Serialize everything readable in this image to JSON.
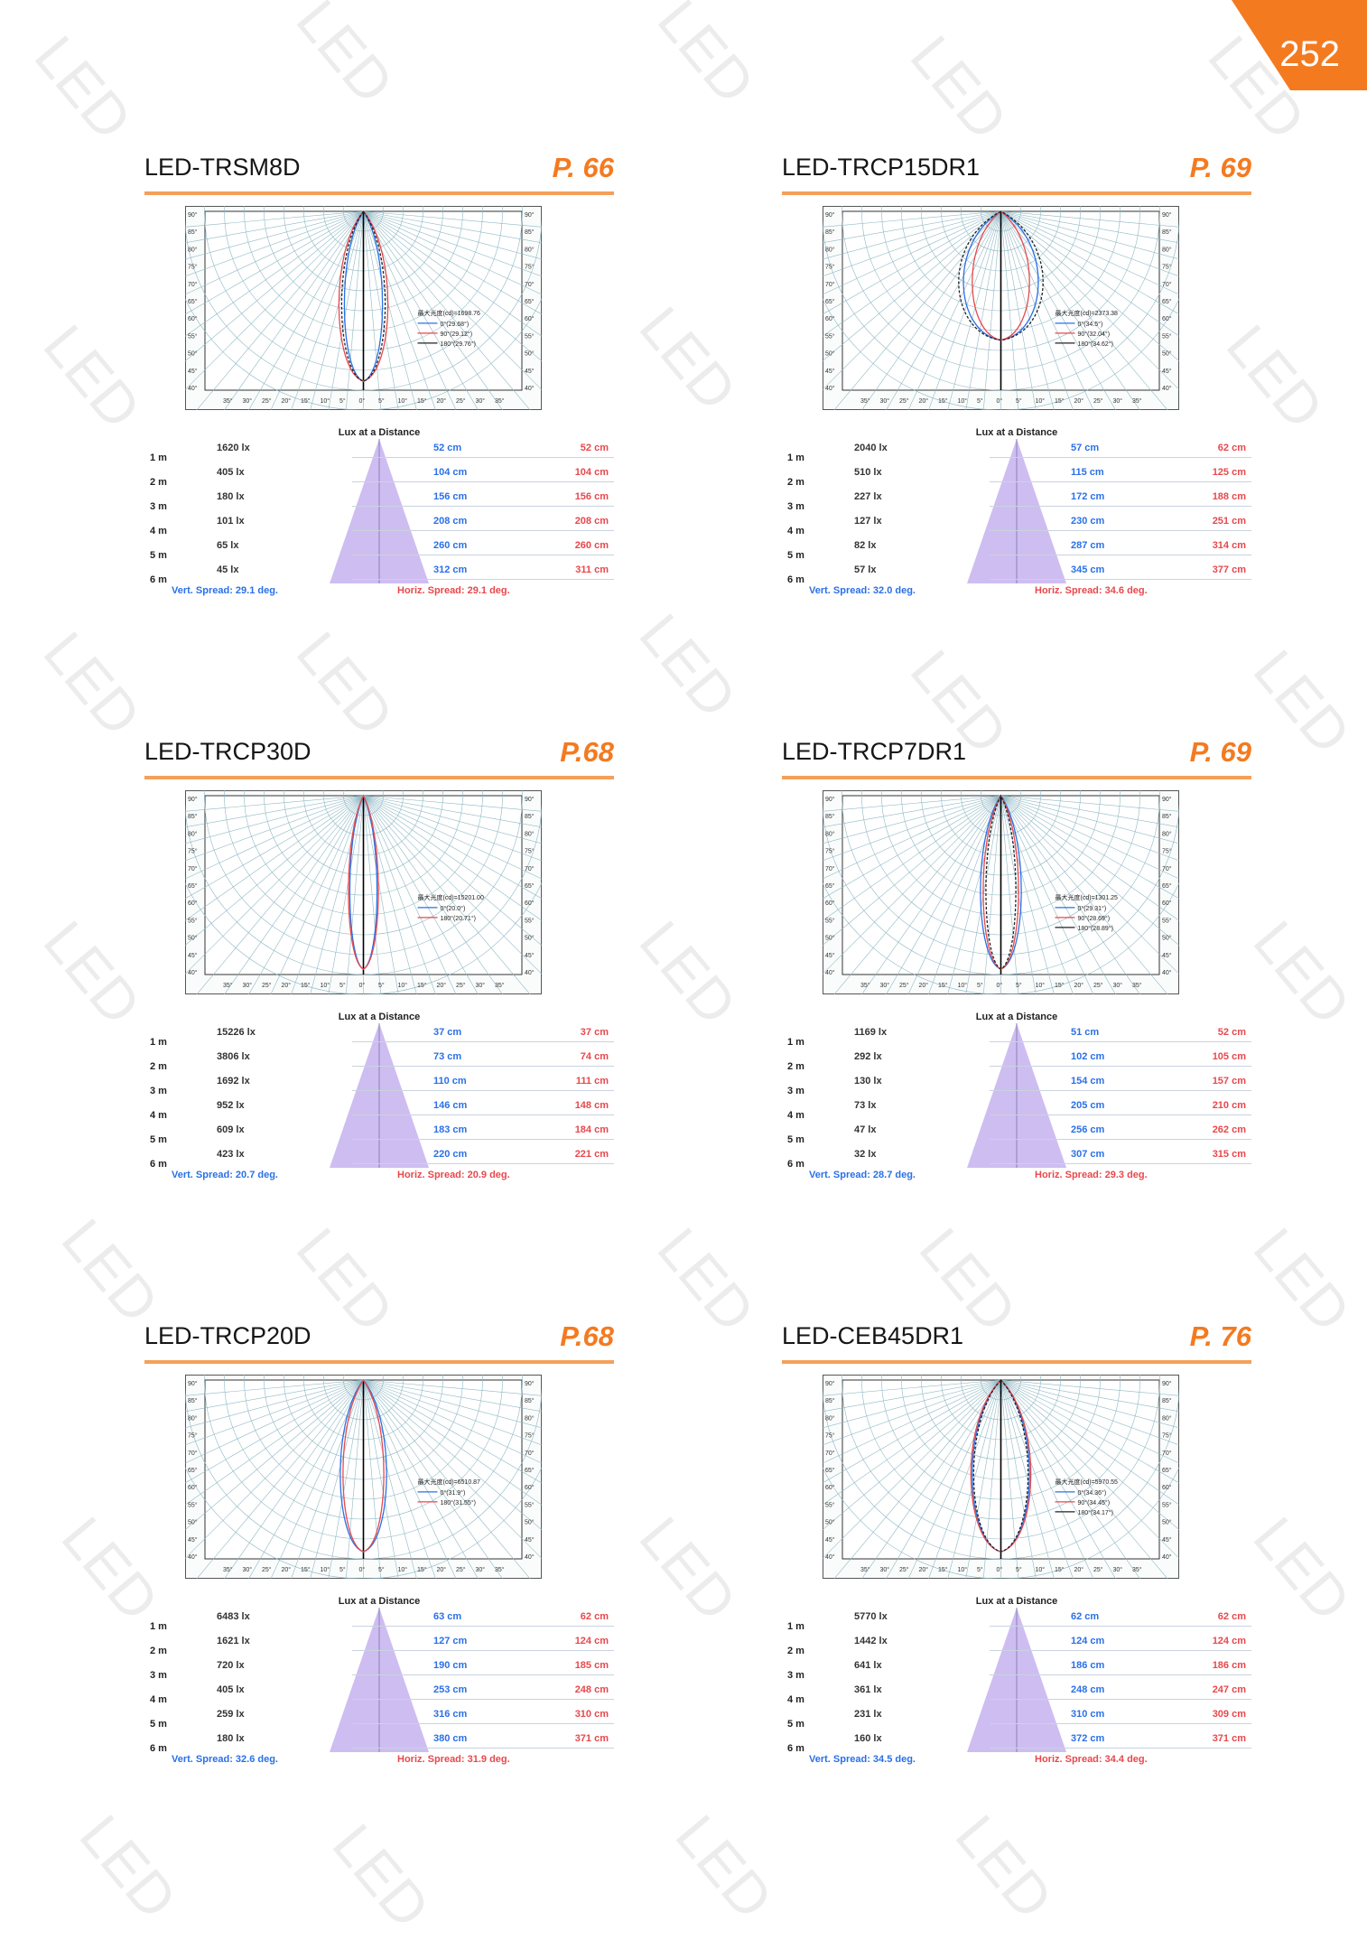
{
  "page_number": "252",
  "watermark": "LED",
  "accent_color": "#f47a20",
  "panels": [
    {
      "title": "LED-TRSM8D",
      "page_ref": "P. 66",
      "lux_title": "Lux at a Distance",
      "legend": {
        "header": "最大光度(cd)=1698.76",
        "lines": [
          "0°(29.68°)",
          "90°(29.12°)",
          "180°(29.76°)"
        ]
      },
      "rows": [
        {
          "dist": "1 m",
          "lux": "1620 lx",
          "vert": "52 cm",
          "horiz": "52 cm"
        },
        {
          "dist": "2 m",
          "lux": "405 lx",
          "vert": "104 cm",
          "horiz": "104 cm"
        },
        {
          "dist": "3 m",
          "lux": "180 lx",
          "vert": "156 cm",
          "horiz": "156 cm"
        },
        {
          "dist": "4 m",
          "lux": "101 lx",
          "vert": "208 cm",
          "horiz": "208 cm"
        },
        {
          "dist": "5 m",
          "lux": "65 lx",
          "vert": "260 cm",
          "horiz": "260 cm"
        },
        {
          "dist": "6 m",
          "lux": "45 lx",
          "vert": "312 cm",
          "horiz": "311 cm"
        }
      ],
      "vert_spread": "Vert. Spread: 29.1 deg.",
      "horiz_spread": "Horiz. Spread: 29.1 deg."
    },
    {
      "title": "LED-TRCP15DR1",
      "page_ref": "P. 69",
      "lux_title": "Lux at a Distance",
      "legend": {
        "header": "最大光度(cd)=2373.38",
        "lines": [
          "0°(34.5°)",
          "90°(32.04°)",
          "180°(34.62°)"
        ]
      },
      "rows": [
        {
          "dist": "1 m",
          "lux": "2040 lx",
          "vert": "57 cm",
          "horiz": "62 cm"
        },
        {
          "dist": "2 m",
          "lux": "510 lx",
          "vert": "115 cm",
          "horiz": "125 cm"
        },
        {
          "dist": "3 m",
          "lux": "227 lx",
          "vert": "172 cm",
          "horiz": "188 cm"
        },
        {
          "dist": "4 m",
          "lux": "127 lx",
          "vert": "230 cm",
          "horiz": "251 cm"
        },
        {
          "dist": "5 m",
          "lux": "82 lx",
          "vert": "287 cm",
          "horiz": "314 cm"
        },
        {
          "dist": "6 m",
          "lux": "57 lx",
          "vert": "345 cm",
          "horiz": "377 cm"
        }
      ],
      "vert_spread": "Vert. Spread: 32.0 deg.",
      "horiz_spread": "Horiz. Spread: 34.6 deg."
    },
    {
      "title": "LED-TRCP30D",
      "page_ref": "P.68",
      "lux_title": "Lux at a Distance",
      "legend": {
        "header": "最大光度(cd)=15201.00",
        "lines": [
          "0°(20.0°)",
          "180°(20.71°)"
        ]
      },
      "rows": [
        {
          "dist": "1 m",
          "lux": "15226 lx",
          "vert": "37 cm",
          "horiz": "37 cm"
        },
        {
          "dist": "2 m",
          "lux": "3806 lx",
          "vert": "73 cm",
          "horiz": "74 cm"
        },
        {
          "dist": "3 m",
          "lux": "1692 lx",
          "vert": "110 cm",
          "horiz": "111 cm"
        },
        {
          "dist": "4 m",
          "lux": "952 lx",
          "vert": "146 cm",
          "horiz": "148 cm"
        },
        {
          "dist": "5 m",
          "lux": "609 lx",
          "vert": "183 cm",
          "horiz": "184 cm"
        },
        {
          "dist": "6 m",
          "lux": "423 lx",
          "vert": "220 cm",
          "horiz": "221 cm"
        }
      ],
      "vert_spread": "Vert. Spread: 20.7 deg.",
      "horiz_spread": "Horiz. Spread: 20.9 deg."
    },
    {
      "title": "LED-TRCP7DR1",
      "page_ref": "P. 69",
      "lux_title": "Lux at a Distance",
      "legend": {
        "header": "最大光度(cd)=1301.25",
        "lines": [
          "0°(29.31°)",
          "90°(28.69°)",
          "180°(28.89°)"
        ]
      },
      "rows": [
        {
          "dist": "1 m",
          "lux": "1169 lx",
          "vert": "51 cm",
          "horiz": "52 cm"
        },
        {
          "dist": "2 m",
          "lux": "292 lx",
          "vert": "102 cm",
          "horiz": "105 cm"
        },
        {
          "dist": "3 m",
          "lux": "130 lx",
          "vert": "154 cm",
          "horiz": "157 cm"
        },
        {
          "dist": "4 m",
          "lux": "73 lx",
          "vert": "205 cm",
          "horiz": "210 cm"
        },
        {
          "dist": "5 m",
          "lux": "47 lx",
          "vert": "256 cm",
          "horiz": "262 cm"
        },
        {
          "dist": "6 m",
          "lux": "32 lx",
          "vert": "307 cm",
          "horiz": "315 cm"
        }
      ],
      "vert_spread": "Vert. Spread: 28.7 deg.",
      "horiz_spread": "Horiz. Spread: 29.3 deg."
    },
    {
      "title": "LED-TRCP20D",
      "page_ref": "P.68",
      "lux_title": "Lux at a Distance",
      "legend": {
        "header": "最大光度(cd)=6510.87",
        "lines": [
          "0°(31.9°)",
          "180°(31.55°)"
        ]
      },
      "rows": [
        {
          "dist": "1 m",
          "lux": "6483 lx",
          "vert": "63 cm",
          "horiz": "62 cm"
        },
        {
          "dist": "2 m",
          "lux": "1621 lx",
          "vert": "127 cm",
          "horiz": "124 cm"
        },
        {
          "dist": "3 m",
          "lux": "720 lx",
          "vert": "190 cm",
          "horiz": "185 cm"
        },
        {
          "dist": "4 m",
          "lux": "405 lx",
          "vert": "253 cm",
          "horiz": "248 cm"
        },
        {
          "dist": "5 m",
          "lux": "259 lx",
          "vert": "316 cm",
          "horiz": "310 cm"
        },
        {
          "dist": "6 m",
          "lux": "180 lx",
          "vert": "380 cm",
          "horiz": "371 cm"
        }
      ],
      "vert_spread": "Vert. Spread: 32.6 deg.",
      "horiz_spread": "Horiz. Spread: 31.9 deg."
    },
    {
      "title": "LED-CEB45DR1",
      "page_ref": "P. 76",
      "lux_title": "Lux at a Distance",
      "legend": {
        "header": "最大光度(cd)=5970.55",
        "lines": [
          "0°(34.36°)",
          "90°(34.45°)",
          "180°(34.17°)"
        ]
      },
      "rows": [
        {
          "dist": "1 m",
          "lux": "5770 lx",
          "vert": "62 cm",
          "horiz": "62 cm"
        },
        {
          "dist": "2 m",
          "lux": "1442 lx",
          "vert": "124 cm",
          "horiz": "124 cm"
        },
        {
          "dist": "3 m",
          "lux": "641 lx",
          "vert": "186 cm",
          "horiz": "186 cm"
        },
        {
          "dist": "4 m",
          "lux": "361 lx",
          "vert": "248 cm",
          "horiz": "247 cm"
        },
        {
          "dist": "5 m",
          "lux": "231 lx",
          "vert": "310 cm",
          "horiz": "309 cm"
        },
        {
          "dist": "6 m",
          "lux": "160 lx",
          "vert": "372 cm",
          "horiz": "371 cm"
        }
      ],
      "vert_spread": "Vert. Spread: 34.5 deg.",
      "horiz_spread": "Horiz. Spread: 34.4 deg."
    }
  ]
}
